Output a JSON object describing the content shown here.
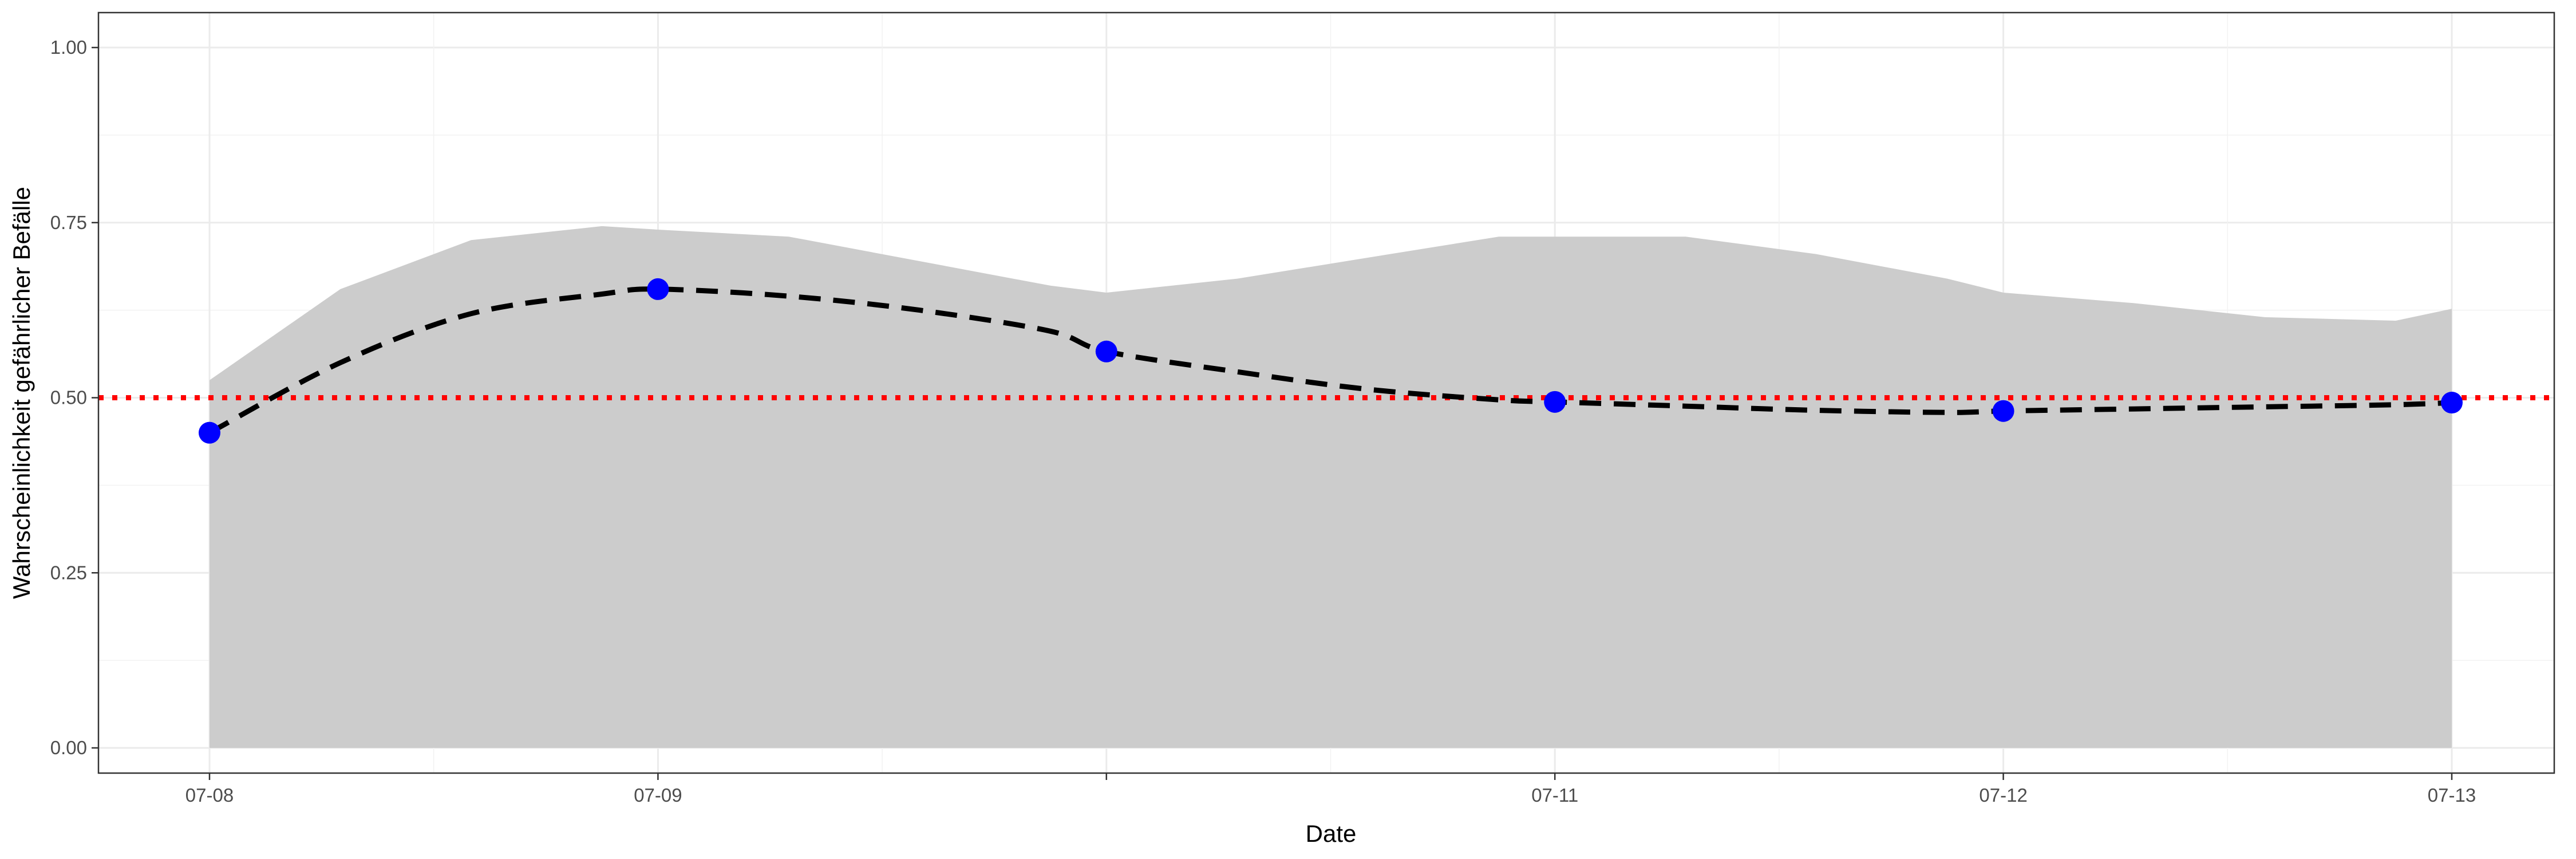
{
  "chart_data": {
    "type": "line",
    "title": "",
    "xlabel": "Date",
    "ylabel": "Wahrscheinlichkeit gefährlicher Befälle",
    "x_ticks": [
      "07-08",
      "07-09",
      "07-11",
      "07-12",
      "07-13"
    ],
    "y_ticks": [
      "0.00",
      "0.25",
      "0.50",
      "0.75",
      "1.00"
    ],
    "ylim": [
      0,
      1
    ],
    "xlim": [
      "2024-07-08",
      "2024-07-13"
    ],
    "grid": true,
    "series": [
      {
        "kind": "points",
        "color": "#0000ff",
        "x": [
          "2024-07-08",
          "2024-07-09",
          "2024-07-10",
          "2024-07-11",
          "2024-07-12",
          "2024-07-13"
        ],
        "y": [
          0.45,
          0.655,
          0.566,
          0.494,
          0.481,
          0.493
        ]
      },
      {
        "kind": "smooth-line",
        "style": "dashed",
        "color": "#000000",
        "x": [
          "2024-07-08",
          "2024-07-08T07:00",
          "2024-07-08T14:00",
          "2024-07-08T21:00",
          "2024-07-09",
          "2024-07-09T07:00",
          "2024-07-09T14:00",
          "2024-07-09T21:00",
          "2024-07-10",
          "2024-07-10T07:00",
          "2024-07-10T14:00",
          "2024-07-10T21:00",
          "2024-07-11",
          "2024-07-11T07:00",
          "2024-07-11T14:00",
          "2024-07-11T21:00",
          "2024-07-12",
          "2024-07-12T07:00",
          "2024-07-12T14:00",
          "2024-07-12T21:00",
          "2024-07-13"
        ],
        "y": [
          0.45,
          0.55,
          0.62,
          0.648,
          0.655,
          0.645,
          0.625,
          0.595,
          0.566,
          0.537,
          0.512,
          0.497,
          0.494,
          0.488,
          0.482,
          0.479,
          0.481,
          0.484,
          0.487,
          0.49,
          0.493
        ]
      },
      {
        "kind": "upper-band",
        "color": "#cccccc",
        "x": [
          "2024-07-08",
          "2024-07-08T07:00",
          "2024-07-08T14:00",
          "2024-07-08T21:00",
          "2024-07-09",
          "2024-07-09T07:00",
          "2024-07-09T14:00",
          "2024-07-09T21:00",
          "2024-07-10",
          "2024-07-10T07:00",
          "2024-07-10T14:00",
          "2024-07-10T21:00",
          "2024-07-11",
          "2024-07-11T07:00",
          "2024-07-11T14:00",
          "2024-07-11T21:00",
          "2024-07-12",
          "2024-07-12T07:00",
          "2024-07-12T14:00",
          "2024-07-12T21:00",
          "2024-07-13"
        ],
        "y": [
          0.525,
          0.655,
          0.725,
          0.745,
          0.74,
          0.73,
          0.695,
          0.66,
          0.65,
          0.67,
          0.7,
          0.73,
          0.73,
          0.73,
          0.705,
          0.67,
          0.65,
          0.635,
          0.615,
          0.61,
          0.627
        ]
      }
    ],
    "reference_line": {
      "y": 0.5,
      "color": "#ff0000",
      "style": "dotted"
    }
  }
}
